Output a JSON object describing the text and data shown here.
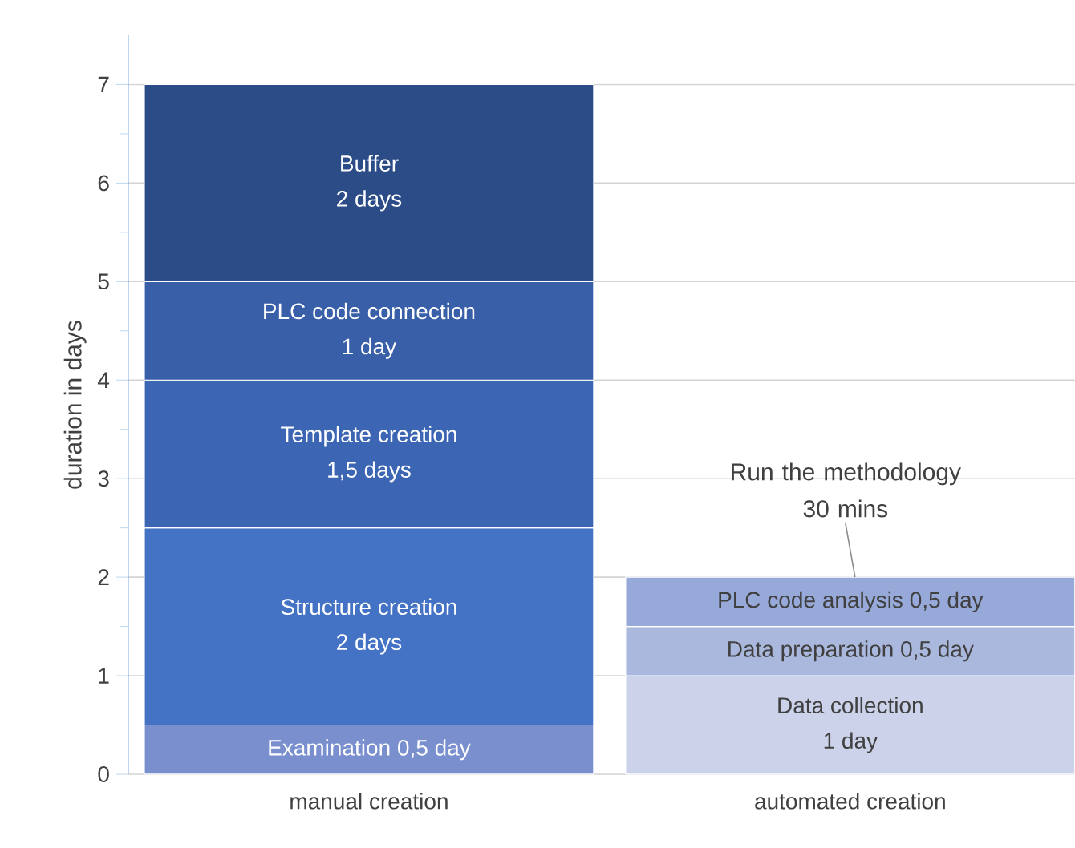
{
  "chart_data": {
    "type": "bar",
    "stacked": true,
    "ylabel": "duration in days",
    "categories": [
      "manual creation",
      "automated creation"
    ],
    "ylim": [
      0,
      7.5
    ],
    "yticks": [
      0,
      1,
      2,
      3,
      4,
      5,
      6,
      7
    ],
    "grid": "y",
    "series": [
      {
        "name": "Examination",
        "color": "#7a90ce",
        "values": [
          0.5,
          null
        ],
        "value_labels": [
          "0,5 day",
          null
        ]
      },
      {
        "name": "Structure creation",
        "color": "#4472c4",
        "values": [
          2,
          null
        ],
        "value_labels": [
          "2 days",
          null
        ]
      },
      {
        "name": "Template creation",
        "color": "#3c66b4",
        "values": [
          1.5,
          null
        ],
        "value_labels": [
          "1,5 days",
          null
        ]
      },
      {
        "name": "PLC code connection",
        "color": "#385fa8",
        "values": [
          1,
          null
        ],
        "value_labels": [
          "1 day",
          null
        ]
      },
      {
        "name": "Buffer",
        "color": "#2c4c87",
        "values": [
          2,
          null
        ],
        "value_labels": [
          "2 days",
          null
        ]
      },
      {
        "name": "Data collection",
        "color": "#ccd2ea",
        "values": [
          null,
          1
        ],
        "value_labels": [
          null,
          "1 day"
        ]
      },
      {
        "name": "Data preparation",
        "color": "#aab8de",
        "values": [
          null,
          0.5
        ],
        "value_labels": [
          null,
          "0,5 day"
        ]
      },
      {
        "name": "PLC code analysis",
        "color": "#97a9d9",
        "values": [
          null,
          0.5
        ],
        "value_labels": [
          null,
          "0,5 day"
        ]
      }
    ],
    "annotations": [
      {
        "text": "Run the methodology 30 mins",
        "x": "automated creation",
        "y": 2
      }
    ]
  }
}
